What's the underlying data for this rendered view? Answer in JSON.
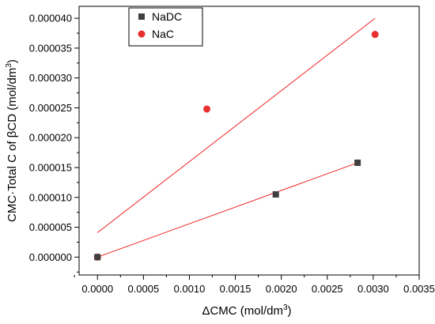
{
  "chart_data": {
    "type": "scatter",
    "xlabel_main": "ΔCMC (mol/dm",
    "xlabel_sup": "3",
    "xlabel_tail": ")",
    "ylabel_main": "CMC·Total C of βCD (mol/dm",
    "ylabel_sup": "3",
    "ylabel_tail": ")",
    "xlim": [
      -0.0002,
      0.0035
    ],
    "ylim": [
      -3e-06,
      4.2e-05
    ],
    "xticks": [
      "0.0000",
      "0.0005",
      "0.0010",
      "0.0015",
      "0.0020",
      "0.0025",
      "0.0030",
      "0.0035"
    ],
    "xtick_values": [
      0.0,
      0.0005,
      0.001,
      0.0015,
      0.002,
      0.0025,
      0.003,
      0.0035
    ],
    "yticks": [
      "0.000000",
      "0.000005",
      "0.000010",
      "0.000015",
      "0.000020",
      "0.000025",
      "0.000030",
      "0.000035",
      "0.000040"
    ],
    "ytick_values": [
      0.0,
      5e-06,
      1e-05,
      1.5e-05,
      2e-05,
      2.5e-05,
      3e-05,
      3.5e-05,
      4e-05
    ],
    "grid": false,
    "legend_position": "top-left",
    "series": [
      {
        "name": "NaDC",
        "marker": "square",
        "color": "#404040",
        "points": [
          [
            0.0,
            0.0
          ],
          [
            0.00194,
            1.05e-05
          ],
          [
            0.00283,
            1.58e-05
          ]
        ],
        "fit": {
          "color": "#ee2222",
          "x": [
            0.0,
            0.00283
          ],
          "y": [
            0.0,
            1.58e-05
          ]
        }
      },
      {
        "name": "NaC",
        "marker": "circle",
        "color": "#e83030",
        "points": [
          [
            0.0,
            0.0
          ],
          [
            0.00119,
            2.48e-05
          ],
          [
            0.00302,
            3.73e-05
          ]
        ],
        "fit": {
          "color": "#ee2222",
          "x": [
            0.0,
            0.00302
          ],
          "y": [
            4.1e-06,
            4e-05
          ]
        }
      }
    ]
  }
}
